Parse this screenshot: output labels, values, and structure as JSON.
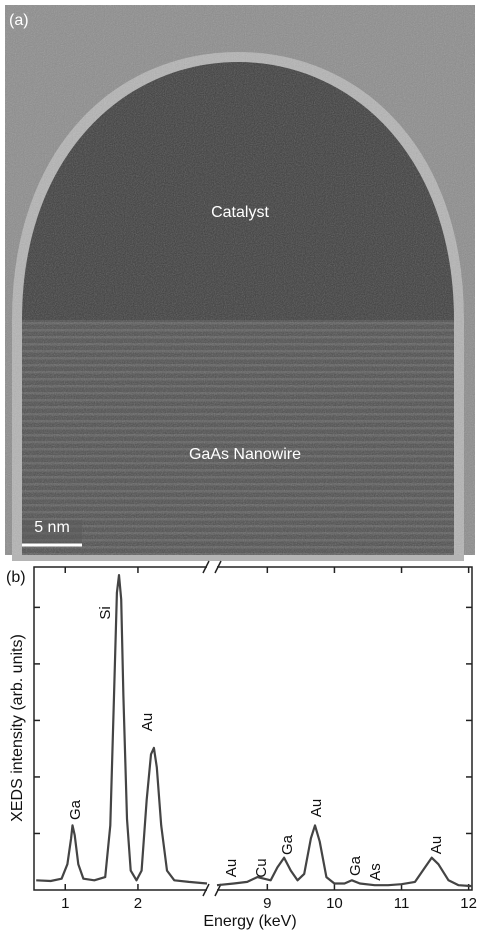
{
  "panel_a": {
    "label": "(a)",
    "annotations": [
      "Catalyst",
      "GaAs Nanowire"
    ],
    "scale_bar": "5 nm"
  },
  "chart_data": {
    "type": "line",
    "panel_label": "(b)",
    "x_label": "Energy (keV)",
    "y_label": "XEDS intensity (arb. units)",
    "xlim": [
      0.57,
      12.05
    ],
    "xbreak": [
      2.95,
      8.25
    ],
    "ylim": [
      0,
      100
    ],
    "xticks": [
      1,
      2,
      9,
      10,
      11,
      12
    ],
    "yticks": [
      17.5,
      35,
      52.5,
      70,
      87.5
    ],
    "color": "#444444",
    "x": [
      0.6,
      0.8,
      0.95,
      1.03,
      1.08,
      1.1,
      1.13,
      1.18,
      1.25,
      1.4,
      1.55,
      1.62,
      1.67,
      1.71,
      1.74,
      1.77,
      1.8,
      1.85,
      1.9,
      1.98,
      2.05,
      2.12,
      2.18,
      2.22,
      2.26,
      2.32,
      2.4,
      2.5,
      2.7,
      2.95,
      null,
      8.25,
      8.5,
      8.7,
      8.85,
      8.95,
      9.05,
      9.15,
      9.25,
      9.35,
      9.45,
      9.55,
      9.65,
      9.71,
      9.78,
      9.88,
      10.0,
      10.15,
      10.26,
      10.38,
      10.6,
      10.8,
      11.0,
      11.2,
      11.35,
      11.45,
      11.55,
      11.7,
      11.85,
      12.05
    ],
    "values": [
      3,
      2.8,
      3.5,
      8,
      16,
      20,
      17,
      8,
      3.5,
      3,
      4,
      20,
      60,
      92,
      97.5,
      90,
      60,
      22,
      6,
      3,
      6,
      28,
      42,
      44,
      38,
      20,
      6,
      3,
      2.5,
      2,
      null,
      1.5,
      2,
      2.5,
      4,
      3.5,
      3,
      7,
      10,
      6,
      3,
      5,
      16,
      20,
      15,
      4,
      2,
      2,
      3,
      2,
      1.5,
      1.5,
      1.8,
      2.5,
      7,
      10,
      8,
      3,
      1.5,
      1.2
    ],
    "annotations": [
      "Ga",
      "Si",
      "Au",
      "Au",
      "Cu",
      "Ga",
      "Au",
      "Ga",
      "As",
      "Au"
    ]
  }
}
